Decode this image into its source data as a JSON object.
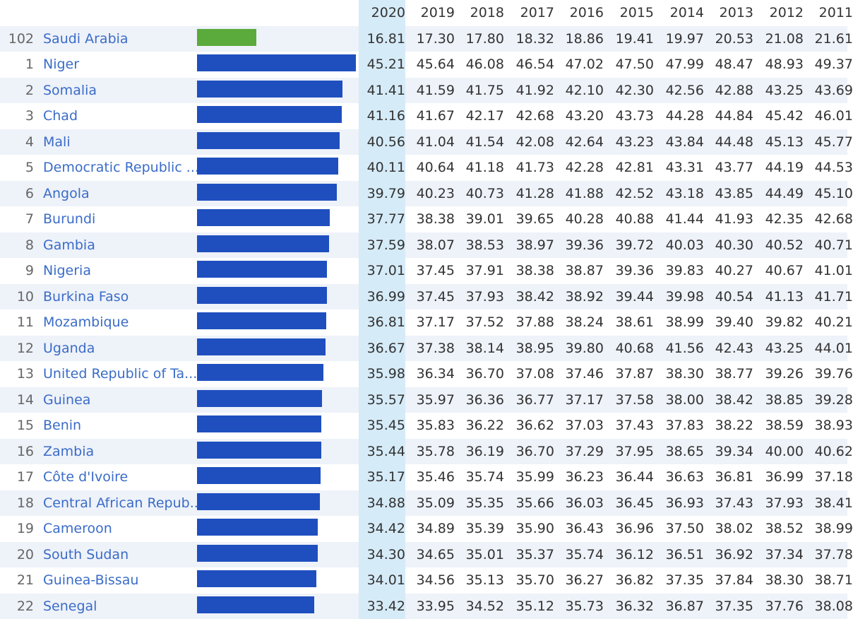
{
  "colors": {
    "highlight_bar": "#5aaa3c",
    "bar": "#1f4fbf",
    "link": "#3a6cc8",
    "year_highlight": "#d6ebf8"
  },
  "chart_data": {
    "type": "table",
    "bar_max": 45.21,
    "years": [
      "2020",
      "2019",
      "2018",
      "2017",
      "2016",
      "2015",
      "2014",
      "2013",
      "2012",
      "2011"
    ],
    "rows": [
      {
        "rank": "102",
        "country": "Saudi Arabia",
        "highlight": true,
        "values": [
          "16.81",
          "17.30",
          "17.80",
          "18.32",
          "18.86",
          "19.41",
          "19.97",
          "20.53",
          "21.08",
          "21.61"
        ]
      },
      {
        "rank": "1",
        "country": "Niger",
        "values": [
          "45.21",
          "45.64",
          "46.08",
          "46.54",
          "47.02",
          "47.50",
          "47.99",
          "48.47",
          "48.93",
          "49.37"
        ]
      },
      {
        "rank": "2",
        "country": "Somalia",
        "values": [
          "41.41",
          "41.59",
          "41.75",
          "41.92",
          "42.10",
          "42.30",
          "42.56",
          "42.88",
          "43.25",
          "43.69"
        ]
      },
      {
        "rank": "3",
        "country": "Chad",
        "values": [
          "41.16",
          "41.67",
          "42.17",
          "42.68",
          "43.20",
          "43.73",
          "44.28",
          "44.84",
          "45.42",
          "46.01"
        ]
      },
      {
        "rank": "4",
        "country": "Mali",
        "values": [
          "40.56",
          "41.04",
          "41.54",
          "42.08",
          "42.64",
          "43.23",
          "43.84",
          "44.48",
          "45.13",
          "45.77"
        ]
      },
      {
        "rank": "5",
        "country": "Democratic Republic ...",
        "values": [
          "40.11",
          "40.64",
          "41.18",
          "41.73",
          "42.28",
          "42.81",
          "43.31",
          "43.77",
          "44.19",
          "44.53"
        ]
      },
      {
        "rank": "6",
        "country": "Angola",
        "values": [
          "39.79",
          "40.23",
          "40.73",
          "41.28",
          "41.88",
          "42.52",
          "43.18",
          "43.85",
          "44.49",
          "45.10"
        ]
      },
      {
        "rank": "7",
        "country": "Burundi",
        "values": [
          "37.77",
          "38.38",
          "39.01",
          "39.65",
          "40.28",
          "40.88",
          "41.44",
          "41.93",
          "42.35",
          "42.68"
        ]
      },
      {
        "rank": "8",
        "country": "Gambia",
        "values": [
          "37.59",
          "38.07",
          "38.53",
          "38.97",
          "39.36",
          "39.72",
          "40.03",
          "40.30",
          "40.52",
          "40.71"
        ]
      },
      {
        "rank": "9",
        "country": "Nigeria",
        "values": [
          "37.01",
          "37.45",
          "37.91",
          "38.38",
          "38.87",
          "39.36",
          "39.83",
          "40.27",
          "40.67",
          "41.01"
        ]
      },
      {
        "rank": "10",
        "country": "Burkina Faso",
        "values": [
          "36.99",
          "37.45",
          "37.93",
          "38.42",
          "38.92",
          "39.44",
          "39.98",
          "40.54",
          "41.13",
          "41.71"
        ]
      },
      {
        "rank": "11",
        "country": "Mozambique",
        "values": [
          "36.81",
          "37.17",
          "37.52",
          "37.88",
          "38.24",
          "38.61",
          "38.99",
          "39.40",
          "39.82",
          "40.21"
        ]
      },
      {
        "rank": "12",
        "country": "Uganda",
        "values": [
          "36.67",
          "37.38",
          "38.14",
          "38.95",
          "39.80",
          "40.68",
          "41.56",
          "42.43",
          "43.25",
          "44.01"
        ]
      },
      {
        "rank": "13",
        "country": "United Republic of Ta...",
        "values": [
          "35.98",
          "36.34",
          "36.70",
          "37.08",
          "37.46",
          "37.87",
          "38.30",
          "38.77",
          "39.26",
          "39.76"
        ]
      },
      {
        "rank": "14",
        "country": "Guinea",
        "values": [
          "35.57",
          "35.97",
          "36.36",
          "36.77",
          "37.17",
          "37.58",
          "38.00",
          "38.42",
          "38.85",
          "39.28"
        ]
      },
      {
        "rank": "15",
        "country": "Benin",
        "values": [
          "35.45",
          "35.83",
          "36.22",
          "36.62",
          "37.03",
          "37.43",
          "37.83",
          "38.22",
          "38.59",
          "38.93"
        ]
      },
      {
        "rank": "16",
        "country": "Zambia",
        "values": [
          "35.44",
          "35.78",
          "36.19",
          "36.70",
          "37.29",
          "37.95",
          "38.65",
          "39.34",
          "40.00",
          "40.62"
        ]
      },
      {
        "rank": "17",
        "country": "Côte d'Ivoire",
        "values": [
          "35.17",
          "35.46",
          "35.74",
          "35.99",
          "36.23",
          "36.44",
          "36.63",
          "36.81",
          "36.99",
          "37.18"
        ]
      },
      {
        "rank": "18",
        "country": "Central African Repub...",
        "values": [
          "34.88",
          "35.09",
          "35.35",
          "35.66",
          "36.03",
          "36.45",
          "36.93",
          "37.43",
          "37.93",
          "38.41"
        ]
      },
      {
        "rank": "19",
        "country": "Cameroon",
        "values": [
          "34.42",
          "34.89",
          "35.39",
          "35.90",
          "36.43",
          "36.96",
          "37.50",
          "38.02",
          "38.52",
          "38.99"
        ]
      },
      {
        "rank": "20",
        "country": "South Sudan",
        "values": [
          "34.30",
          "34.65",
          "35.01",
          "35.37",
          "35.74",
          "36.12",
          "36.51",
          "36.92",
          "37.34",
          "37.78"
        ]
      },
      {
        "rank": "21",
        "country": "Guinea-Bissau",
        "values": [
          "34.01",
          "34.56",
          "35.13",
          "35.70",
          "36.27",
          "36.82",
          "37.35",
          "37.84",
          "38.30",
          "38.71"
        ]
      },
      {
        "rank": "22",
        "country": "Senegal",
        "values": [
          "33.42",
          "33.95",
          "34.52",
          "35.12",
          "35.73",
          "36.32",
          "36.87",
          "37.35",
          "37.76",
          "38.08"
        ]
      }
    ]
  }
}
